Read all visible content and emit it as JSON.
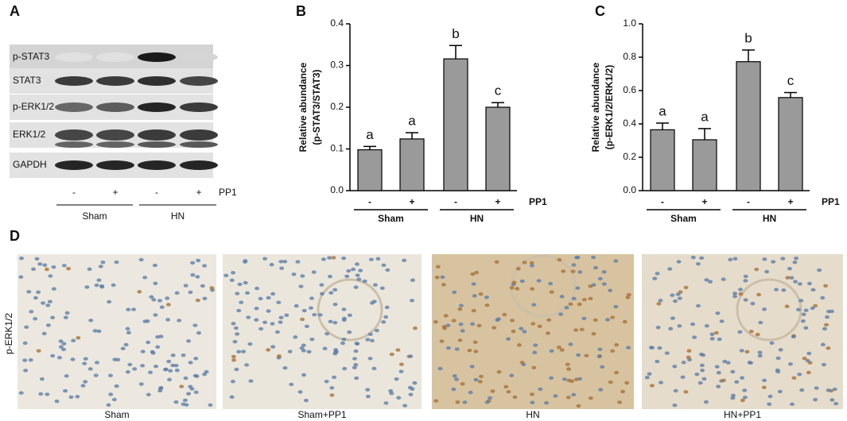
{
  "chart_data": [
    {
      "type": "bar",
      "panel_label": "B",
      "ylabel": [
        "Relative abundance",
        "(p-STAT3/STAT3)"
      ],
      "categories": [
        "-",
        "+",
        "-",
        "+"
      ],
      "values": [
        0.098,
        0.124,
        0.316,
        0.2
      ],
      "errors": [
        0.008,
        0.015,
        0.032,
        0.011
      ],
      "annotations": [
        "a",
        "a",
        "b",
        "c"
      ],
      "groups": [
        "Sham",
        "HN"
      ],
      "factor_label": "PP1",
      "color": "#9a9a9a",
      "ylim": [
        0,
        0.4
      ],
      "yticks": [
        {
          "value": 0,
          "label": "0.0"
        },
        0.1,
        0.2,
        0.3,
        0.4
      ]
    },
    {
      "type": "bar",
      "panel_label": "C",
      "ylabel": [
        "Relative abundance",
        "(p-ERK1/2/ERK1/2)"
      ],
      "categories": [
        "-",
        "+",
        "-",
        "+"
      ],
      "values": [
        0.365,
        0.305,
        0.773,
        0.558
      ],
      "errors": [
        0.04,
        0.067,
        0.07,
        0.03
      ],
      "annotations": [
        "a",
        "a",
        "b",
        "c"
      ],
      "groups": [
        "Sham",
        "HN"
      ],
      "factor_label": "PP1",
      "color": "#9a9a9a",
      "ylim": [
        0,
        1.0
      ],
      "yticks": [
        {
          "value": 0,
          "label": "0.0"
        },
        0.2,
        0.4,
        0.6,
        0.8,
        {
          "value": 1,
          "label": "1.0"
        }
      ]
    }
  ],
  "blot": {
    "panel_label": "A",
    "rows": [
      "p-STAT3",
      "STAT3",
      "p-ERK1/2",
      "ERK1/2",
      "GAPDH"
    ],
    "lanes": [
      "-",
      "+",
      "-",
      "+"
    ],
    "factor_label": "PP1",
    "groups": [
      "Sham",
      "HN"
    ]
  },
  "histology": {
    "panel_label": "D",
    "row_label": "p-ERK1/2",
    "captions": [
      "Sham",
      "Sham+PP1",
      "HN",
      "HN+PP1"
    ]
  }
}
